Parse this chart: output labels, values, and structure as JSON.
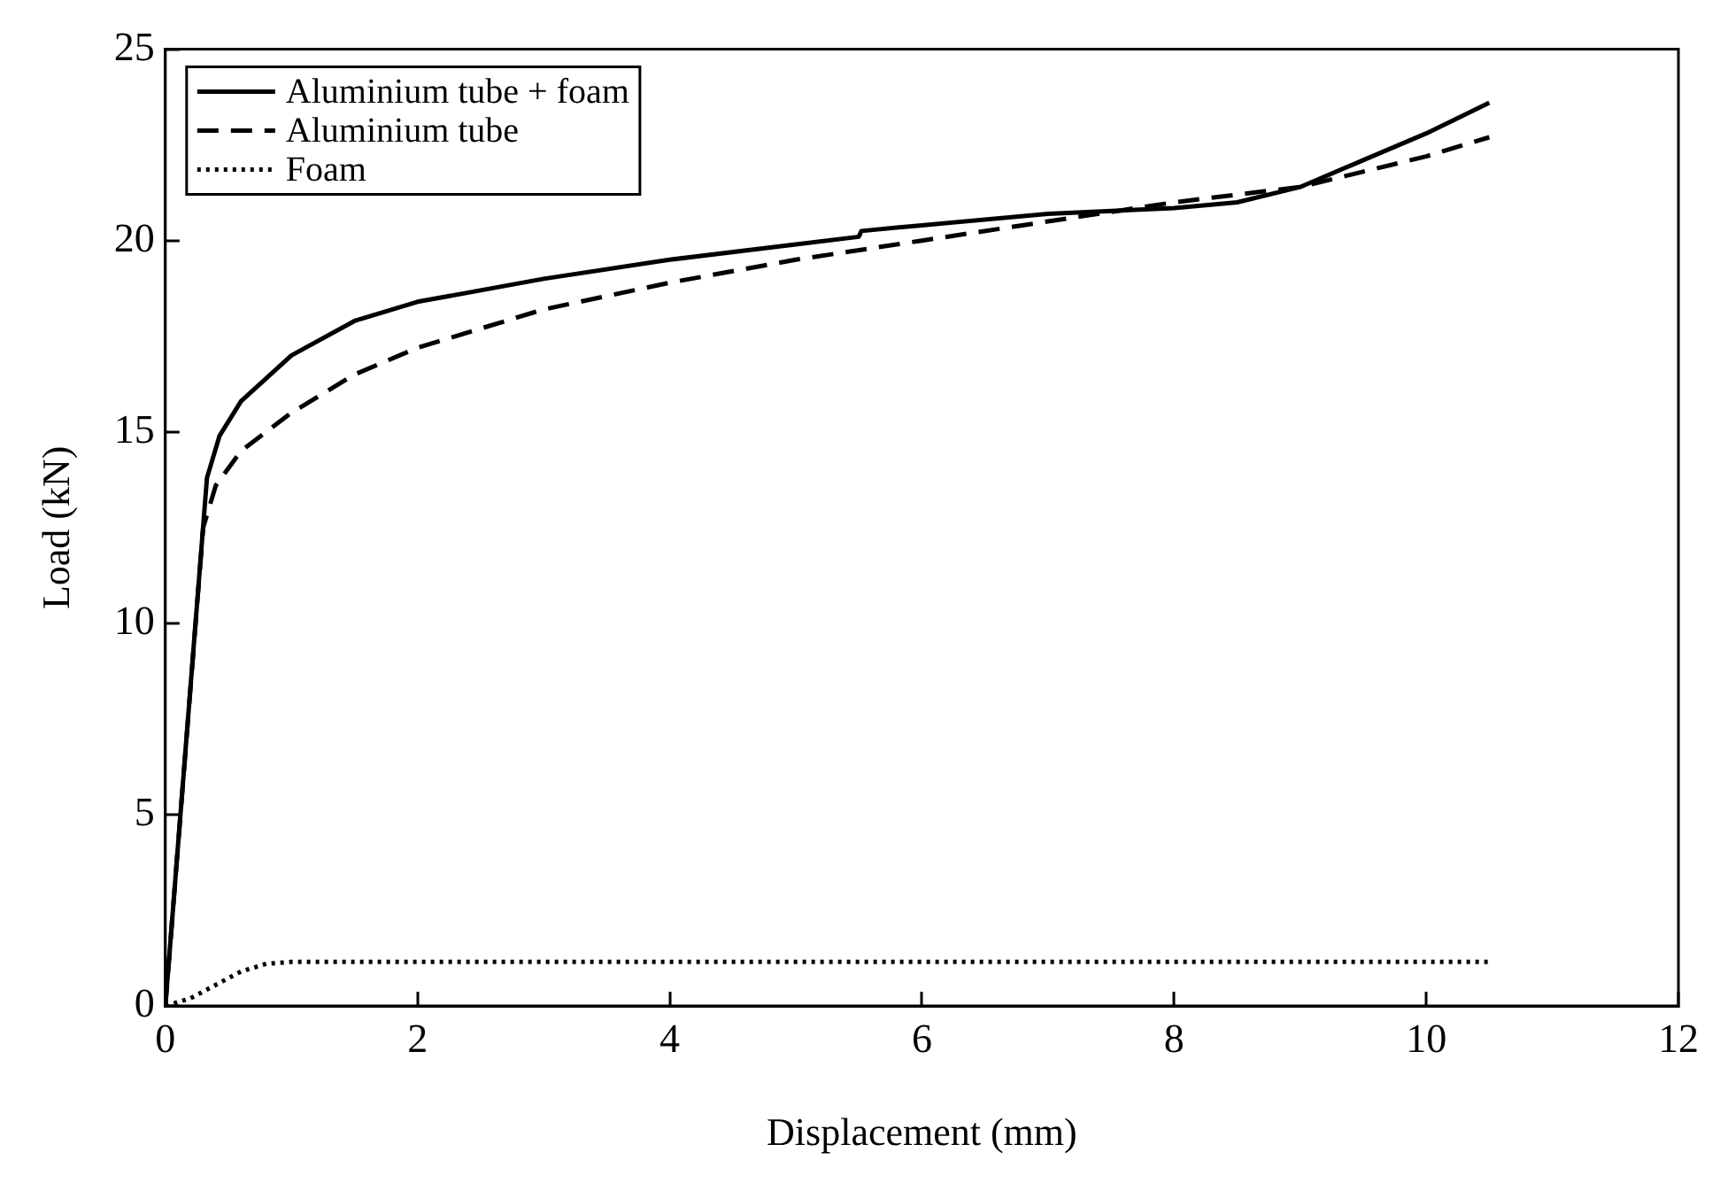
{
  "chart_data": {
    "type": "line",
    "xlabel": "Displacement (mm)",
    "ylabel": "Load (kN)",
    "xlim": [
      0,
      12
    ],
    "xticks": [
      0,
      2,
      4,
      6,
      8,
      10,
      12
    ],
    "ylim": [
      0,
      25
    ],
    "yticks": [
      0,
      5,
      10,
      15,
      20,
      25
    ],
    "grid": false,
    "legend": "top left",
    "marker": "none",
    "series": [
      {
        "name": "Aluminium tube + foam",
        "color": "#000000",
        "line_style": "solid",
        "x": [
          0,
          0.33,
          0.43,
          0.6,
          1,
          1.5,
          2,
          3,
          4,
          5,
          5.5,
          5.52,
          6,
          7,
          8,
          8.5,
          9,
          9.5,
          10,
          10.5
        ],
        "values": [
          0,
          13.8,
          14.9,
          15.8,
          17.0,
          17.9,
          18.4,
          19.0,
          19.5,
          19.9,
          20.1,
          20.25,
          20.4,
          20.7,
          20.85,
          21.0,
          21.4,
          22.1,
          22.8,
          23.6
        ]
      },
      {
        "name": "Aluminium tube",
        "color": "#000000",
        "line_style": "dashed",
        "x": [
          0,
          0.3,
          0.4,
          0.6,
          1,
          1.5,
          2,
          3,
          4,
          5,
          6,
          7,
          8,
          9,
          10,
          10.5
        ],
        "values": [
          0,
          12.5,
          13.6,
          14.5,
          15.5,
          16.5,
          17.2,
          18.2,
          18.9,
          19.5,
          20.0,
          20.5,
          21.0,
          21.4,
          22.2,
          22.7
        ]
      },
      {
        "name": "Foam",
        "color": "#000000",
        "line_style": "dotted",
        "x": [
          0,
          0.2,
          0.4,
          0.6,
          0.8,
          1,
          2,
          10.5
        ],
        "values": [
          0,
          0.2,
          0.55,
          0.9,
          1.1,
          1.15,
          1.15,
          1.15
        ]
      }
    ]
  }
}
